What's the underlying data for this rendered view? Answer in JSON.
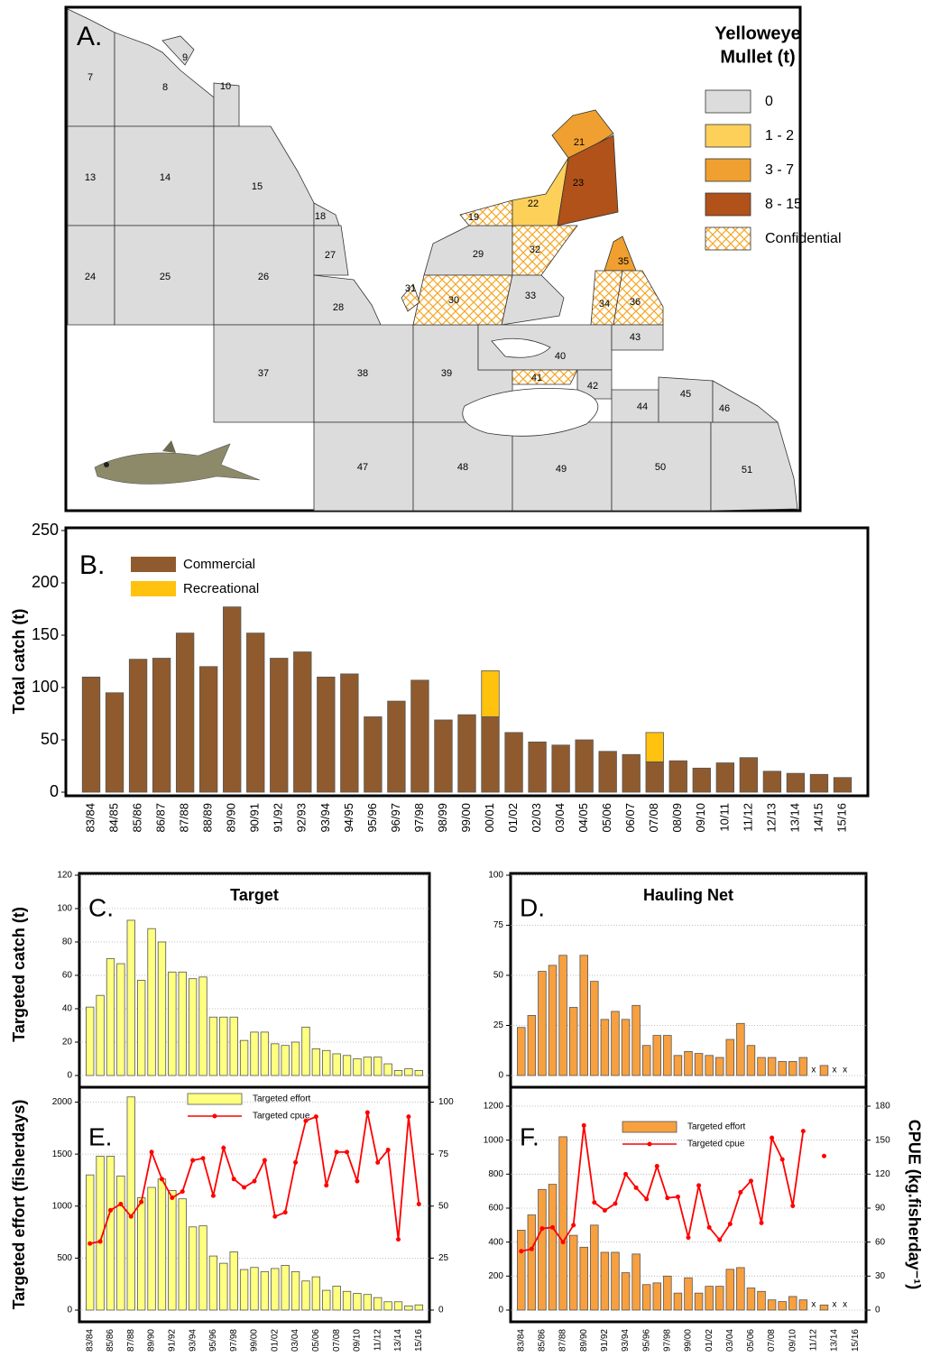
{
  "map": {
    "panel_label": "A.",
    "legend": {
      "title_lines": [
        "Yelloweye",
        "Mullet (t)"
      ],
      "items": [
        {
          "label": "0",
          "color": "#dcdcdc"
        },
        {
          "label": "1 - 2",
          "color": "#fdd05a"
        },
        {
          "label": "3 - 7",
          "color": "#f0a030"
        },
        {
          "label": "8 - 15",
          "color": "#b0521a"
        },
        {
          "label": "Confidential",
          "color": "#f5a623"
        }
      ]
    },
    "regions": [
      "7",
      "8",
      "9",
      "10",
      "13",
      "14",
      "15",
      "18",
      "24",
      "25",
      "26",
      "27",
      "28",
      "29",
      "30",
      "31",
      "32",
      "33",
      "19",
      "22",
      "21",
      "23",
      "35",
      "34",
      "36",
      "40",
      "43",
      "41",
      "42",
      "44",
      "45",
      "46",
      "37",
      "38",
      "39",
      "47",
      "48",
      "49",
      "50",
      "51"
    ]
  },
  "chart_data": [
    {
      "type": "stacked_bar",
      "panel_label": "B.",
      "ylabel": "Total catch (t)",
      "ylim": [
        0,
        250
      ],
      "yticks": [
        0,
        50,
        100,
        150,
        200,
        250
      ],
      "legend": "upper left",
      "grid": false,
      "categories": [
        "83/84",
        "84/85",
        "85/86",
        "86/87",
        "87/88",
        "88/89",
        "89/90",
        "90/91",
        "91/92",
        "92/93",
        "93/94",
        "94/95",
        "95/96",
        "96/97",
        "97/98",
        "98/99",
        "99/00",
        "00/01",
        "01/02",
        "02/03",
        "03/04",
        "04/05",
        "05/06",
        "06/07",
        "07/08",
        "08/09",
        "09/10",
        "10/11",
        "11/12",
        "12/13",
        "13/14",
        "14/15",
        "15/16"
      ],
      "series": [
        {
          "name": "Commercial",
          "color": "#8f5b2e",
          "values": [
            110,
            95,
            127,
            128,
            152,
            120,
            177,
            152,
            128,
            134,
            110,
            113,
            72,
            87,
            107,
            69,
            74,
            72,
            57,
            48,
            45,
            50,
            39,
            36,
            29,
            30,
            23,
            28,
            33,
            20,
            18,
            17,
            14
          ]
        },
        {
          "name": "Recreational",
          "color": "#ffc20e",
          "values": [
            0,
            0,
            0,
            0,
            0,
            0,
            0,
            0,
            0,
            0,
            0,
            0,
            0,
            0,
            0,
            0,
            0,
            44,
            0,
            0,
            0,
            0,
            0,
            0,
            28,
            0,
            0,
            0,
            0,
            0,
            0,
            0,
            0
          ]
        }
      ]
    },
    {
      "type": "bar",
      "panel_label": "C.",
      "title": "Target",
      "ylabel": "Targeted catch (t)",
      "ylim": [
        0,
        120
      ],
      "yticks": [
        0,
        20,
        40,
        60,
        80,
        100,
        120
      ],
      "grid": true,
      "color": "#ffff80",
      "categories": [
        "83/84",
        "84/85",
        "85/86",
        "86/87",
        "87/88",
        "88/89",
        "89/90",
        "90/91",
        "91/92",
        "92/93",
        "93/94",
        "94/95",
        "95/96",
        "96/97",
        "97/98",
        "98/99",
        "99/00",
        "00/01",
        "01/02",
        "02/03",
        "03/04",
        "04/05",
        "05/06",
        "06/07",
        "07/08",
        "08/09",
        "09/10",
        "10/11",
        "11/12",
        "12/13",
        "13/14",
        "14/15",
        "15/16"
      ],
      "values": [
        41,
        48,
        70,
        67,
        93,
        57,
        88,
        80,
        62,
        62,
        58,
        59,
        35,
        35,
        35,
        21,
        26,
        26,
        19,
        18,
        20,
        29,
        16,
        15,
        13,
        12,
        10,
        11,
        11,
        7,
        3,
        4,
        3
      ]
    },
    {
      "type": "bar",
      "panel_label": "D.",
      "title": "Hauling Net",
      "ylim": [
        0,
        100
      ],
      "yticks": [
        0,
        25,
        50,
        75,
        100
      ],
      "grid": true,
      "color": "#f7a040",
      "categories": [
        "83/84",
        "84/85",
        "85/86",
        "86/87",
        "87/88",
        "88/89",
        "89/90",
        "90/91",
        "91/92",
        "92/93",
        "93/94",
        "94/95",
        "95/96",
        "96/97",
        "97/98",
        "98/99",
        "99/00",
        "00/01",
        "01/02",
        "02/03",
        "03/04",
        "04/05",
        "05/06",
        "06/07",
        "07/08",
        "08/09",
        "09/10",
        "10/11",
        "11/12",
        "12/13",
        "13/14",
        "14/15",
        "15/16"
      ],
      "values": [
        24,
        30,
        52,
        55,
        60,
        34,
        60,
        47,
        28,
        32,
        28,
        35,
        15,
        20,
        20,
        10,
        12,
        11,
        10,
        9,
        18,
        26,
        15,
        9,
        9,
        7,
        7,
        9,
        null,
        5,
        null,
        null,
        null
      ],
      "value_labels": [
        null,
        null,
        null,
        null,
        null,
        null,
        null,
        null,
        null,
        null,
        null,
        null,
        null,
        null,
        null,
        null,
        null,
        null,
        null,
        null,
        null,
        null,
        null,
        null,
        null,
        null,
        null,
        null,
        "x",
        null,
        "x",
        "x",
        null
      ]
    },
    {
      "type": "bar_line",
      "panel_label": "E.",
      "ylabel": "Targeted effort (fisherdays)",
      "ylim": [
        0,
        2100
      ],
      "yticks": [
        0,
        500,
        1000,
        1500,
        2000
      ],
      "y2lim": [
        0,
        105
      ],
      "y2ticks": [
        0,
        25,
        50,
        75,
        100
      ],
      "grid": true,
      "legend": "upper center",
      "categories": [
        "83/84",
        null,
        "85/86",
        null,
        "87/88",
        null,
        "89/90",
        null,
        "91/92",
        null,
        "93/94",
        null,
        "95/96",
        null,
        "97/98",
        null,
        "99/00",
        null,
        "01/02",
        null,
        "03/04",
        null,
        "05/06",
        null,
        "07/08",
        null,
        "09/10",
        null,
        "11/12",
        null,
        "13/14",
        null,
        "15/16"
      ],
      "series": [
        {
          "name": "Targeted effort",
          "color": "#ffff80",
          "values": [
            1300,
            1480,
            1480,
            1290,
            2050,
            1080,
            1180,
            1260,
            1150,
            1070,
            800,
            810,
            520,
            450,
            560,
            390,
            410,
            370,
            400,
            430,
            370,
            280,
            320,
            190,
            230,
            180,
            160,
            150,
            120,
            80,
            80,
            40,
            50
          ]
        },
        {
          "name": "Targeted cpue",
          "color": "#ff0000",
          "axis": "y2",
          "values": [
            32,
            33,
            48,
            51,
            45,
            52,
            76,
            63,
            54,
            57,
            72,
            73,
            55,
            78,
            63,
            59,
            62,
            72,
            45,
            47,
            71,
            91,
            93,
            60,
            76,
            76,
            62,
            95,
            71,
            77,
            34,
            93,
            51
          ]
        }
      ]
    },
    {
      "type": "bar_line",
      "panel_label": "F.",
      "y2label": "CPUE (kg.fisherday⁻¹)",
      "ylim": [
        0,
        1200
      ],
      "yticks": [
        0,
        200,
        400,
        600,
        800,
        1000,
        1200
      ],
      "y2lim": [
        0,
        180
      ],
      "y2ticks": [
        0,
        30,
        60,
        90,
        120,
        150,
        180
      ],
      "grid": true,
      "legend": "upper center",
      "categories": [
        "83/84",
        null,
        "85/86",
        null,
        "87/88",
        null,
        "89/90",
        null,
        "91/92",
        null,
        "93/94",
        null,
        "95/96",
        null,
        "97/98",
        null,
        "99/00",
        null,
        "01/02",
        null,
        "03/04",
        null,
        "05/06",
        null,
        "07/08",
        null,
        "09/10",
        null,
        "11/12",
        null,
        "13/14",
        null,
        "15/16"
      ],
      "series": [
        {
          "name": "Targeted effort",
          "color": "#f7a040",
          "values": [
            470,
            560,
            710,
            740,
            1020,
            440,
            370,
            500,
            340,
            340,
            220,
            330,
            150,
            160,
            200,
            100,
            190,
            100,
            140,
            140,
            240,
            250,
            130,
            110,
            60,
            50,
            80,
            60,
            null,
            30,
            null,
            null,
            null
          ],
          "value_labels": [
            null,
            null,
            null,
            null,
            null,
            null,
            null,
            null,
            null,
            null,
            null,
            null,
            null,
            null,
            null,
            null,
            null,
            null,
            null,
            null,
            null,
            null,
            null,
            null,
            null,
            null,
            null,
            null,
            "x",
            null,
            "x",
            "x",
            null
          ]
        },
        {
          "name": "Targeted cpue",
          "color": "#ff0000",
          "axis": "y2",
          "values": [
            52,
            54,
            72,
            73,
            60,
            75,
            163,
            95,
            88,
            94,
            120,
            108,
            98,
            127,
            99,
            100,
            64,
            110,
            73,
            62,
            76,
            104,
            114,
            77,
            152,
            133,
            92,
            158,
            null,
            136,
            null,
            null,
            null
          ]
        }
      ]
    }
  ]
}
